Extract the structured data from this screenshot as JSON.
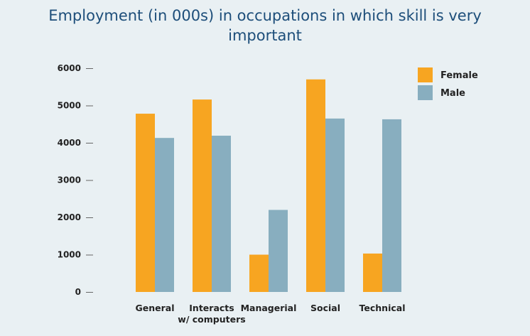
{
  "chart_data": {
    "type": "bar",
    "title_lines": [
      "Employment (in 000s) in occupations in which skill is very",
      "important"
    ],
    "categories": [
      [
        "General"
      ],
      [
        "Interacts",
        "w/ computers"
      ],
      [
        "Managerial"
      ],
      [
        "Social"
      ],
      [
        "Technical"
      ]
    ],
    "series": [
      {
        "name": "Female",
        "color": "#f7a521",
        "values": [
          4780,
          5160,
          1000,
          5700,
          1030
        ]
      },
      {
        "name": "Male",
        "color": "#88aebf",
        "values": [
          4130,
          4190,
          2200,
          4650,
          4630
        ]
      }
    ],
    "yticks": [
      0,
      1000,
      2000,
      3000,
      4000,
      5000,
      6000
    ],
    "ylim": [
      0,
      6000
    ],
    "legend_position": "top-right",
    "grid": false
  }
}
